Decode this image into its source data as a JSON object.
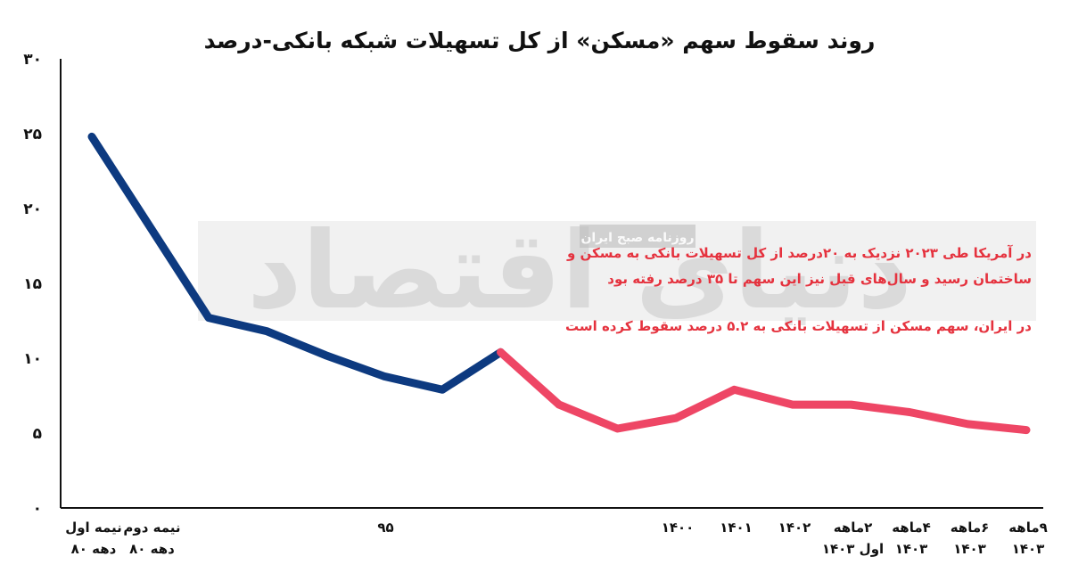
{
  "chart_data": {
    "type": "line",
    "title": "روند سقوط سهم «مسکن» از کل تسهیلات شبکه بانکی-درصد",
    "xlabel": "",
    "ylabel": "",
    "ylim": [
      0,
      30
    ],
    "yticks": [
      "۰",
      "۵",
      "۱۰",
      "۱۵",
      "۲۰",
      "۲۵",
      "۳۰"
    ],
    "x_tick_labels": [
      {
        "index": 0,
        "lines": [
          "نیمه اول",
          "دهه ۸۰"
        ]
      },
      {
        "index": 1,
        "lines": [
          "نیمه دوم",
          "دهه ۸۰"
        ]
      },
      {
        "index": 5,
        "lines": [
          "۹۵"
        ]
      },
      {
        "index": 10,
        "lines": [
          "۱۴۰۰"
        ]
      },
      {
        "index": 11,
        "lines": [
          "۱۴۰۱"
        ]
      },
      {
        "index": 12,
        "lines": [
          "۱۴۰۲"
        ]
      },
      {
        "index": 13,
        "lines": [
          "۲ماهه",
          "اول ۱۴۰۳"
        ]
      },
      {
        "index": 14,
        "lines": [
          "۴ماهه",
          "۱۴۰۳"
        ]
      },
      {
        "index": 15,
        "lines": [
          "۶ماهه",
          "۱۴۰۳"
        ]
      },
      {
        "index": 16,
        "lines": [
          "۹ماهه",
          "۱۴۰۳"
        ]
      }
    ],
    "series": [
      {
        "color": "#0d3a80",
        "points": [
          [
            0,
            24.8
          ],
          [
            2,
            12.7
          ],
          [
            3,
            11.8
          ],
          [
            4,
            10.2
          ],
          [
            5,
            8.8
          ],
          [
            6,
            7.9
          ],
          [
            7,
            10.4
          ]
        ]
      },
      {
        "color": "#ee4665",
        "points": [
          [
            7,
            10.4
          ],
          [
            8,
            6.9
          ],
          [
            9,
            5.3
          ],
          [
            10,
            6.0
          ],
          [
            11,
            7.9
          ],
          [
            12,
            6.9
          ],
          [
            13,
            6.9
          ],
          [
            14,
            6.4
          ],
          [
            15,
            5.6
          ],
          [
            16,
            5.2
          ]
        ]
      }
    ],
    "annotations": [
      "در آمریکا طی ۲۰۲۳ نزدیک به ۲۰درصد از کل تسهیلات بانکی به مسکن و",
      "ساختمان رسید و سال‌های قبل نیز این سهم تا ۳۵ درصد رفته بود",
      "در ایران، سهم مسکن از تسهیلات بانکی به ۵.۲ درصد سقوط کرده است"
    ],
    "grid": false,
    "legend": "none"
  },
  "watermark": {
    "main": "دنیای اقتصاد",
    "sub": "روزنامه صبح ایران"
  }
}
